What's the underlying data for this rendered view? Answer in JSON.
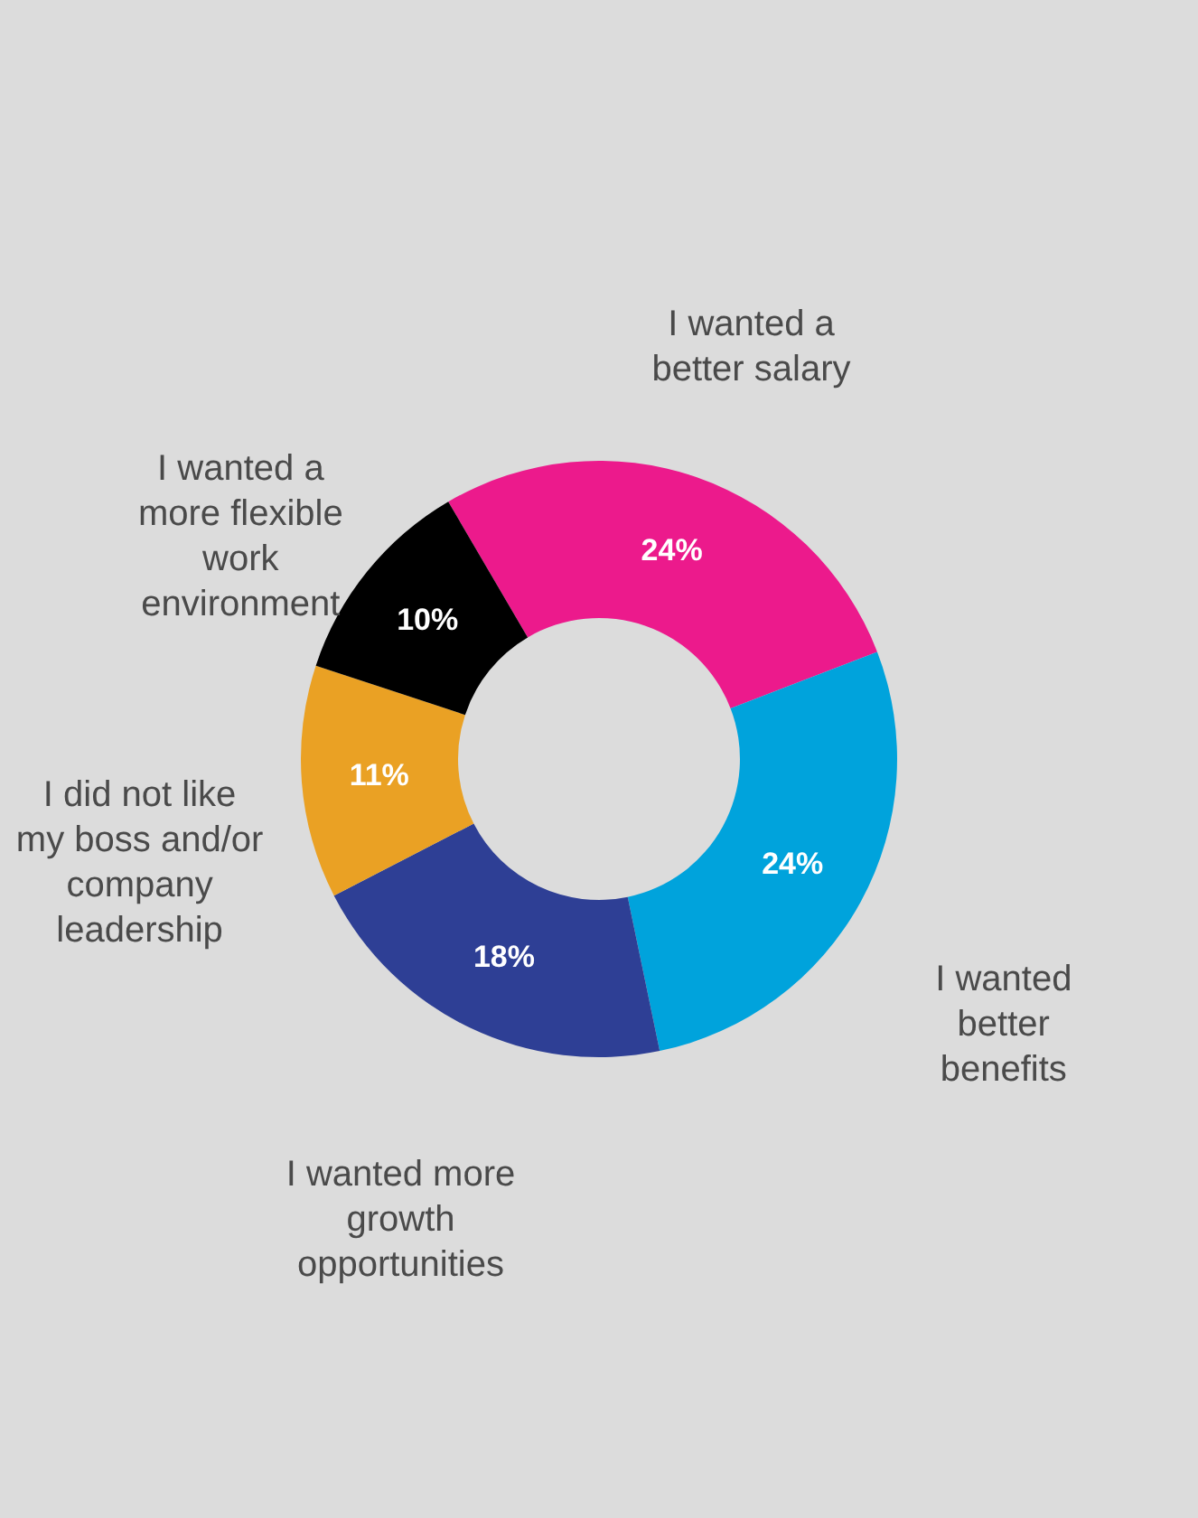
{
  "chart_data": {
    "type": "donut",
    "categories": [
      "I wanted a better salary",
      "I wanted better benefits",
      "I wanted more growth opportunities",
      "I did not like my boss and/or company leadership",
      "I wanted a more flexible work environment"
    ],
    "values": [
      24,
      24,
      18,
      11,
      10
    ],
    "value_labels": [
      "24%",
      "24%",
      "18%",
      "11%",
      "10%"
    ],
    "colors": [
      "#ec1a8c",
      "#00a3dc",
      "#2e3f95",
      "#eaa124",
      "#000000"
    ],
    "legend": false
  }
}
